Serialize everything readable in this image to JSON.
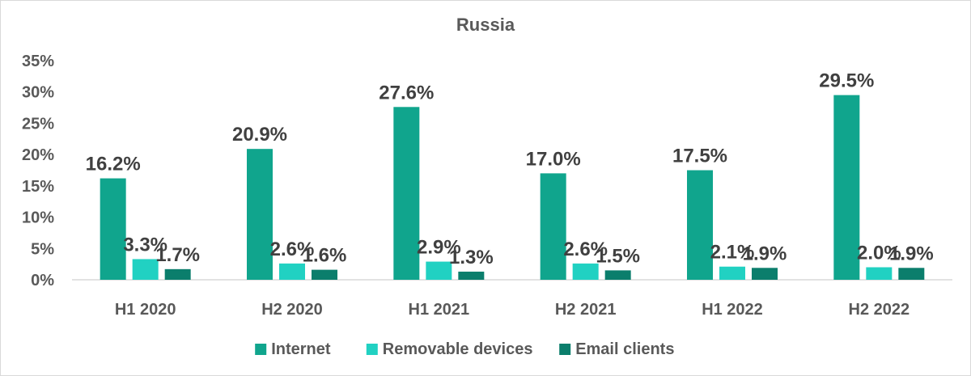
{
  "chart_data": {
    "type": "bar",
    "title": "Russia",
    "xlabel": "",
    "ylabel": "",
    "categories": [
      "H1 2020",
      "H2 2020",
      "H1 2021",
      "H2 2021",
      "H1 2022",
      "H2 2022"
    ],
    "series": [
      {
        "name": "Internet",
        "color": "#10a58d",
        "values": [
          16.2,
          20.9,
          27.6,
          17.0,
          17.5,
          29.5
        ],
        "labels": [
          "16.2%",
          "20.9%",
          "27.6%",
          "17.0%",
          "17.5%",
          "29.5%"
        ]
      },
      {
        "name": "Removable devices",
        "color": "#21d1c2",
        "values": [
          3.3,
          2.6,
          2.9,
          2.6,
          2.1,
          2.0
        ],
        "labels": [
          "3.3%",
          "2.6%",
          "2.9%",
          "2.6%",
          "2.1%",
          "2.0%"
        ]
      },
      {
        "name": "Email clients",
        "color": "#0b7e6c",
        "values": [
          1.7,
          1.6,
          1.3,
          1.5,
          1.9,
          1.9
        ],
        "labels": [
          "1.7%",
          "1.6%",
          "1.3%",
          "1.5%",
          "1.9%",
          "1.9%"
        ]
      }
    ],
    "ylim": [
      0,
      35
    ],
    "yticks": [
      0,
      5,
      10,
      15,
      20,
      25,
      30,
      35
    ],
    "ytick_labels": [
      "0%",
      "5%",
      "10%",
      "15%",
      "20%",
      "25%",
      "30%",
      "35%"
    ],
    "grid": false,
    "legend_position": "bottom"
  }
}
